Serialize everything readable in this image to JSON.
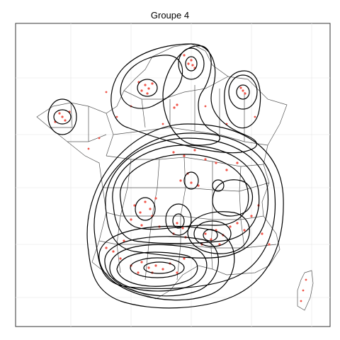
{
  "panel": {
    "title": "Groupe 4",
    "grid": true
  },
  "colors": {
    "background": "#ffffff",
    "frame": "#333333",
    "gridline": "#ebebeb",
    "borders": "#555555",
    "points": "#f0554a",
    "contours": "#000000"
  },
  "layers": [
    "department-borders",
    "observation-points",
    "density-contours"
  ]
}
